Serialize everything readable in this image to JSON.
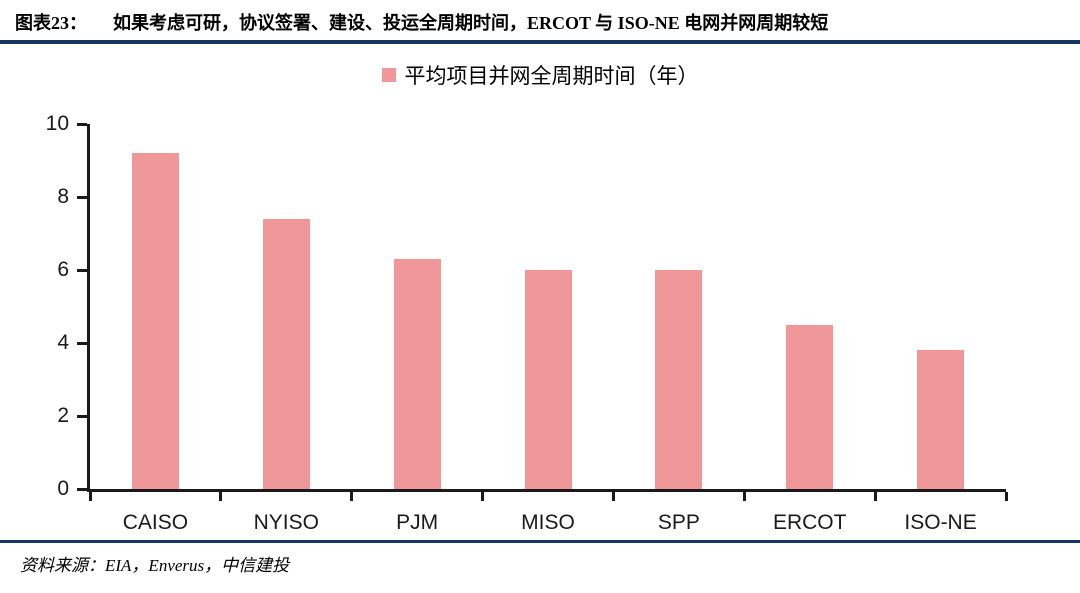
{
  "header": {
    "label": "图表23：",
    "title": "如果考虑可研，协议签署、建设、投运全周期时间，ERCOT 与 ISO-NE 电网并网周期较短"
  },
  "footer": {
    "source": "资料来源：EIA，Enverus，中信建投"
  },
  "colors": {
    "bar": "#F09899",
    "rule": "#17375D",
    "axis": "#1A1A1A"
  },
  "chart_data": {
    "type": "bar",
    "title": "",
    "legend_label": "平均项目并网全周期时间（年）",
    "categories": [
      "CAISO",
      "NYISO",
      "PJM",
      "MISO",
      "SPP",
      "ERCOT",
      "ISO-NE"
    ],
    "values": [
      9.2,
      7.4,
      6.3,
      6.0,
      6.0,
      4.5,
      3.8
    ],
    "xlabel": "",
    "ylabel": "",
    "ylim": [
      0,
      10
    ],
    "yticks": [
      0,
      2,
      4,
      6,
      8,
      10
    ],
    "grid": false,
    "legend_position": "top-center"
  }
}
